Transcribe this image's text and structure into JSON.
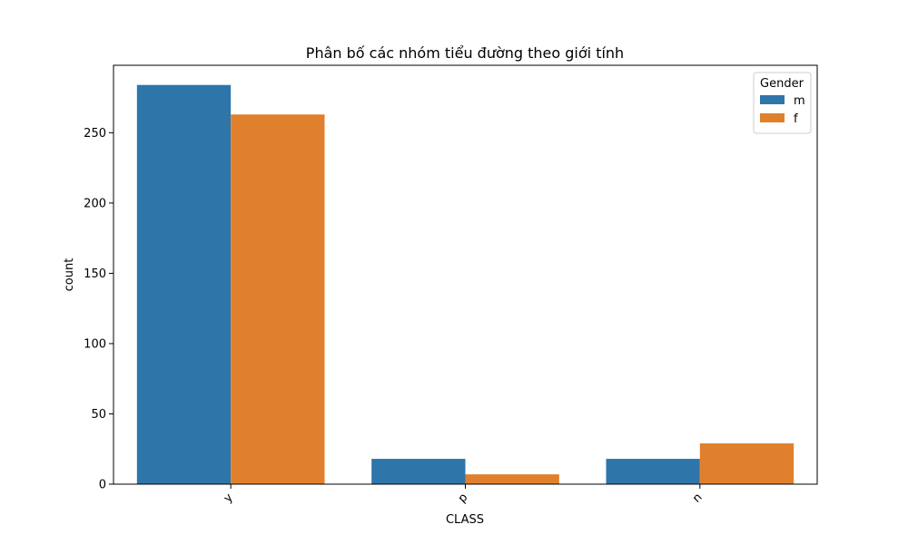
{
  "chart_data": {
    "type": "bar",
    "title": "Phân bố các nhóm tiểu đường theo giới tính",
    "xlabel": "CLASS",
    "ylabel": "count",
    "categories": [
      "y",
      "p",
      "n"
    ],
    "ylim": [
      0,
      298
    ],
    "yticks": [
      0,
      50,
      100,
      150,
      200,
      250
    ],
    "grid": false,
    "legend": {
      "title": "Gender",
      "placement": "top-right"
    },
    "series": [
      {
        "name": "m",
        "color": "#2e75a9",
        "values": [
          284,
          18,
          18
        ]
      },
      {
        "name": "f",
        "color": "#e0802c",
        "values": [
          263,
          7,
          29
        ]
      }
    ]
  }
}
